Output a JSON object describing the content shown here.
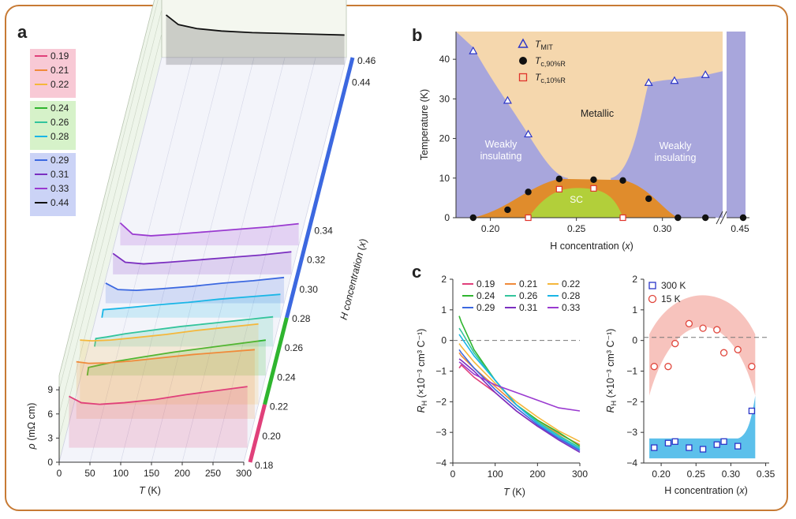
{
  "panel_labels": {
    "a": "a",
    "b": "b",
    "c": "c"
  },
  "chart_data": [
    {
      "panel": "a",
      "type": "line",
      "xlabel_italic": "T",
      "xlabel_unit": " (K)",
      "ylabel_italic": "ρ",
      "ylabel_unit": " (mΩ cm)",
      "zlabel_italic": "H concentration",
      "zlabel_rest": " (x)",
      "xticks": [
        "0",
        "50",
        "100",
        "150",
        "200",
        "250",
        "300"
      ],
      "yticks": [
        "0",
        "3",
        "6",
        "9"
      ],
      "zticks": [
        "0.18",
        "0.20",
        "0.22",
        "0.24",
        "0.26",
        "0.28",
        "0.30",
        "0.32",
        "0.34",
        "0.44",
        "0.46"
      ],
      "legend": {
        "groups": [
          {
            "items": [
              {
                "label": "0.19",
                "color": "#e0407a"
              },
              {
                "label": "0.21",
                "color": "#f08a3a"
              },
              {
                "label": "0.22",
                "color": "#f5b73b"
              }
            ]
          },
          {
            "items": [
              {
                "label": "0.24",
                "color": "#2fb52f"
              },
              {
                "label": "0.26",
                "color": "#33c49c"
              },
              {
                "label": "0.28",
                "color": "#1ab6e6"
              }
            ]
          },
          {
            "items": [
              {
                "label": "0.29",
                "color": "#3c68e0"
              },
              {
                "label": "0.31",
                "color": "#7b2fc0"
              },
              {
                "label": "0.33",
                "color": "#9a3ad0"
              },
              {
                "label": "0.44",
                "color": "#111111"
              }
            ]
          }
        ]
      },
      "series": [
        {
          "name": "0.19",
          "x": [
            10,
            30,
            60,
            100,
            150,
            200,
            250,
            300
          ],
          "y": [
            6.4,
            5.6,
            5.4,
            5.6,
            6.0,
            6.6,
            7.1,
            7.6
          ]
        },
        {
          "name": "0.21",
          "x": [
            10,
            30,
            60,
            100,
            150,
            200,
            250,
            300
          ],
          "y": [
            7.1,
            6.9,
            6.95,
            7.2,
            7.6,
            8.0,
            8.3,
            8.6
          ]
        },
        {
          "name": "0.22",
          "x": [
            10,
            30,
            60,
            100,
            150,
            200,
            250,
            300
          ],
          "y": [
            8.0,
            7.9,
            8.0,
            8.3,
            8.7,
            9.2,
            9.6,
            10.0
          ]
        },
        {
          "name": "0.24",
          "x": [
            10,
            12,
            30,
            60,
            100,
            150,
            200,
            250,
            300
          ],
          "y": [
            0,
            1.0,
            1.3,
            1.8,
            2.3,
            2.9,
            3.4,
            3.9,
            4.4
          ]
        },
        {
          "name": "0.26",
          "x": [
            10,
            12,
            30,
            60,
            100,
            150,
            200,
            250,
            300
          ],
          "y": [
            0,
            1.0,
            1.2,
            1.6,
            2.0,
            2.5,
            2.9,
            3.3,
            3.7
          ]
        },
        {
          "name": "0.28",
          "x": [
            10,
            12,
            30,
            60,
            100,
            150,
            200,
            250,
            300
          ],
          "y": [
            0,
            1.0,
            1.1,
            1.3,
            1.6,
            1.9,
            2.3,
            2.6,
            2.9
          ]
        },
        {
          "name": "0.29",
          "x": [
            10,
            30,
            60,
            100,
            150,
            200,
            250,
            300
          ],
          "y": [
            2.5,
            1.7,
            1.6,
            1.8,
            2.1,
            2.5,
            2.8,
            3.2
          ]
        },
        {
          "name": "0.31",
          "x": [
            10,
            30,
            60,
            100,
            150,
            200,
            250,
            300
          ],
          "y": [
            2.6,
            1.5,
            1.3,
            1.5,
            1.8,
            2.1,
            2.4,
            2.8
          ]
        },
        {
          "name": "0.33",
          "x": [
            10,
            30,
            60,
            100,
            150,
            200,
            250,
            300
          ],
          "y": [
            2.8,
            1.4,
            1.2,
            1.4,
            1.7,
            2.0,
            2.3,
            2.7
          ]
        },
        {
          "name": "0.44",
          "x": [
            10,
            30,
            60,
            100,
            150,
            200,
            250,
            300
          ],
          "y": [
            6.2,
            5.0,
            4.5,
            4.2,
            4.0,
            3.9,
            3.8,
            3.7
          ]
        }
      ]
    },
    {
      "panel": "b",
      "type": "scatter",
      "xlabel": "H concentration",
      "xlabel_italic": "x",
      "ylabel": "Temperature (K)",
      "xticks": [
        "0.20",
        "0.25",
        "0.30",
        "0.45"
      ],
      "yticks": [
        "0",
        "10",
        "20",
        "30",
        "40"
      ],
      "xlim": [
        0.18,
        0.335
      ],
      "ylim": [
        0,
        47
      ],
      "break_x": 0.45,
      "region_labels": {
        "metallic": "Metallic",
        "weak_left": [
          "Weakly",
          "insulating"
        ],
        "weak_right": [
          "Weakly",
          "insulating"
        ],
        "sc": "SC"
      },
      "legend": [
        {
          "label_main": "T",
          "label_sub": "MIT",
          "marker": "triangle",
          "color": "#2b35c8"
        },
        {
          "label_main": "T",
          "label_sub": "c,90%R",
          "marker": "circle",
          "color": "#111111"
        },
        {
          "label_main": "T",
          "label_sub": "c,10%R",
          "marker": "square",
          "color": "#e0332b"
        }
      ],
      "series": [
        {
          "name": "T_MIT",
          "x": [
            0.19,
            0.21,
            0.222,
            0.292,
            0.307,
            0.325,
            0.45
          ],
          "y": [
            42,
            29.5,
            21,
            34,
            34.5,
            36,
            0
          ]
        },
        {
          "name": "T_c,90%R",
          "x": [
            0.19,
            0.21,
            0.222,
            0.24,
            0.26,
            0.277,
            0.292,
            0.309,
            0.325,
            0.45
          ],
          "y": [
            0,
            2,
            6.5,
            9.8,
            9.6,
            9.4,
            4.8,
            0,
            0,
            0
          ]
        },
        {
          "name": "T_c,10%R",
          "x": [
            0.222,
            0.24,
            0.26,
            0.277
          ],
          "y": [
            0,
            7.2,
            7.4,
            0
          ]
        }
      ]
    },
    {
      "panel": "c-left",
      "type": "line",
      "xlabel_italic": "T",
      "xlabel_unit": " (K)",
      "ylabel_main": "R",
      "ylabel_sub": "H",
      "ylabel_unit": " (×10⁻³ cm³ C⁻¹)",
      "xticks": [
        "0",
        "100",
        "200",
        "300"
      ],
      "yticks": [
        "2",
        "1",
        "0",
        "−1",
        "−2",
        "−3",
        "−4"
      ],
      "xlim": [
        0,
        300
      ],
      "ylim": [
        -4,
        2
      ],
      "series": [
        {
          "name": "0.19",
          "color": "#e0407a",
          "x": [
            15,
            20,
            50,
            100,
            150,
            200,
            250,
            300
          ],
          "y": [
            -0.9,
            -0.8,
            -1.2,
            -1.7,
            -2.3,
            -2.8,
            -3.2,
            -3.55
          ]
        },
        {
          "name": "0.21",
          "color": "#f08a3a",
          "x": [
            15,
            20,
            50,
            100,
            150,
            200,
            250,
            300
          ],
          "y": [
            -0.4,
            -0.5,
            -0.9,
            -1.5,
            -2.1,
            -2.6,
            -3.05,
            -3.4
          ]
        },
        {
          "name": "0.22",
          "color": "#f5b73b",
          "x": [
            15,
            20,
            50,
            100,
            150,
            200,
            250,
            300
          ],
          "y": [
            -0.1,
            -0.2,
            -0.7,
            -1.4,
            -2.0,
            -2.5,
            -2.95,
            -3.3
          ]
        },
        {
          "name": "0.24",
          "color": "#2fb52f",
          "x": [
            15,
            20,
            50,
            100,
            150,
            200,
            250,
            300
          ],
          "y": [
            0.8,
            0.6,
            -0.3,
            -1.3,
            -2.1,
            -2.6,
            -3.0,
            -3.45
          ]
        },
        {
          "name": "0.26",
          "color": "#33c49c",
          "x": [
            15,
            20,
            50,
            100,
            150,
            200,
            250,
            300
          ],
          "y": [
            0.4,
            0.3,
            -0.4,
            -1.3,
            -2.1,
            -2.65,
            -3.1,
            -3.5
          ]
        },
        {
          "name": "0.28",
          "color": "#1ab6e6",
          "x": [
            15,
            20,
            50,
            100,
            150,
            200,
            250,
            300
          ],
          "y": [
            0.2,
            0.1,
            -0.5,
            -1.3,
            -2.1,
            -2.7,
            -3.15,
            -3.55
          ]
        },
        {
          "name": "0.29",
          "color": "#3c68e0",
          "x": [
            15,
            20,
            50,
            100,
            150,
            200,
            250,
            300
          ],
          "y": [
            -0.3,
            -0.4,
            -0.9,
            -1.6,
            -2.2,
            -2.75,
            -3.2,
            -3.6
          ]
        },
        {
          "name": "0.31",
          "color": "#7b2fc0",
          "x": [
            15,
            20,
            50,
            100,
            150,
            200,
            250,
            300
          ],
          "y": [
            -0.6,
            -0.65,
            -1.0,
            -1.7,
            -2.3,
            -2.8,
            -3.25,
            -3.65
          ]
        },
        {
          "name": "0.33",
          "color": "#9a3ad0",
          "x": [
            15,
            20,
            50,
            100,
            150,
            200,
            250,
            300
          ],
          "y": [
            -0.7,
            -0.75,
            -1.1,
            -1.45,
            -1.7,
            -1.95,
            -2.2,
            -2.3
          ]
        }
      ]
    },
    {
      "panel": "c-right",
      "type": "scatter",
      "xlabel": "H concentration",
      "xlabel_italic": "x",
      "ylabel_main": "R",
      "ylabel_sub": "H",
      "ylabel_unit": " (×10⁻³ cm³ C⁻¹)",
      "xticks": [
        "0.20",
        "0.25",
        "0.30",
        "0.35"
      ],
      "yticks": [
        "2",
        "1",
        "0",
        "−1",
        "−2",
        "−3",
        "−4"
      ],
      "xlim": [
        0.175,
        0.355
      ],
      "ylim": [
        -4,
        2
      ],
      "legend": [
        {
          "label": "300 K",
          "marker": "square",
          "color": "#2b35c8"
        },
        {
          "label": "15 K",
          "marker": "circle",
          "color": "#e0463c"
        }
      ],
      "series": [
        {
          "name": "300 K",
          "x": [
            0.19,
            0.21,
            0.22,
            0.24,
            0.26,
            0.28,
            0.29,
            0.31,
            0.33
          ],
          "y": [
            -3.5,
            -3.35,
            -3.3,
            -3.5,
            -3.55,
            -3.4,
            -3.3,
            -3.45,
            -2.3
          ]
        },
        {
          "name": "15 K",
          "x": [
            0.19,
            0.21,
            0.22,
            0.24,
            0.26,
            0.28,
            0.29,
            0.31,
            0.33
          ],
          "y": [
            -0.85,
            -0.85,
            -0.1,
            0.55,
            0.4,
            0.35,
            -0.4,
            -0.3,
            -0.85
          ]
        }
      ]
    }
  ]
}
